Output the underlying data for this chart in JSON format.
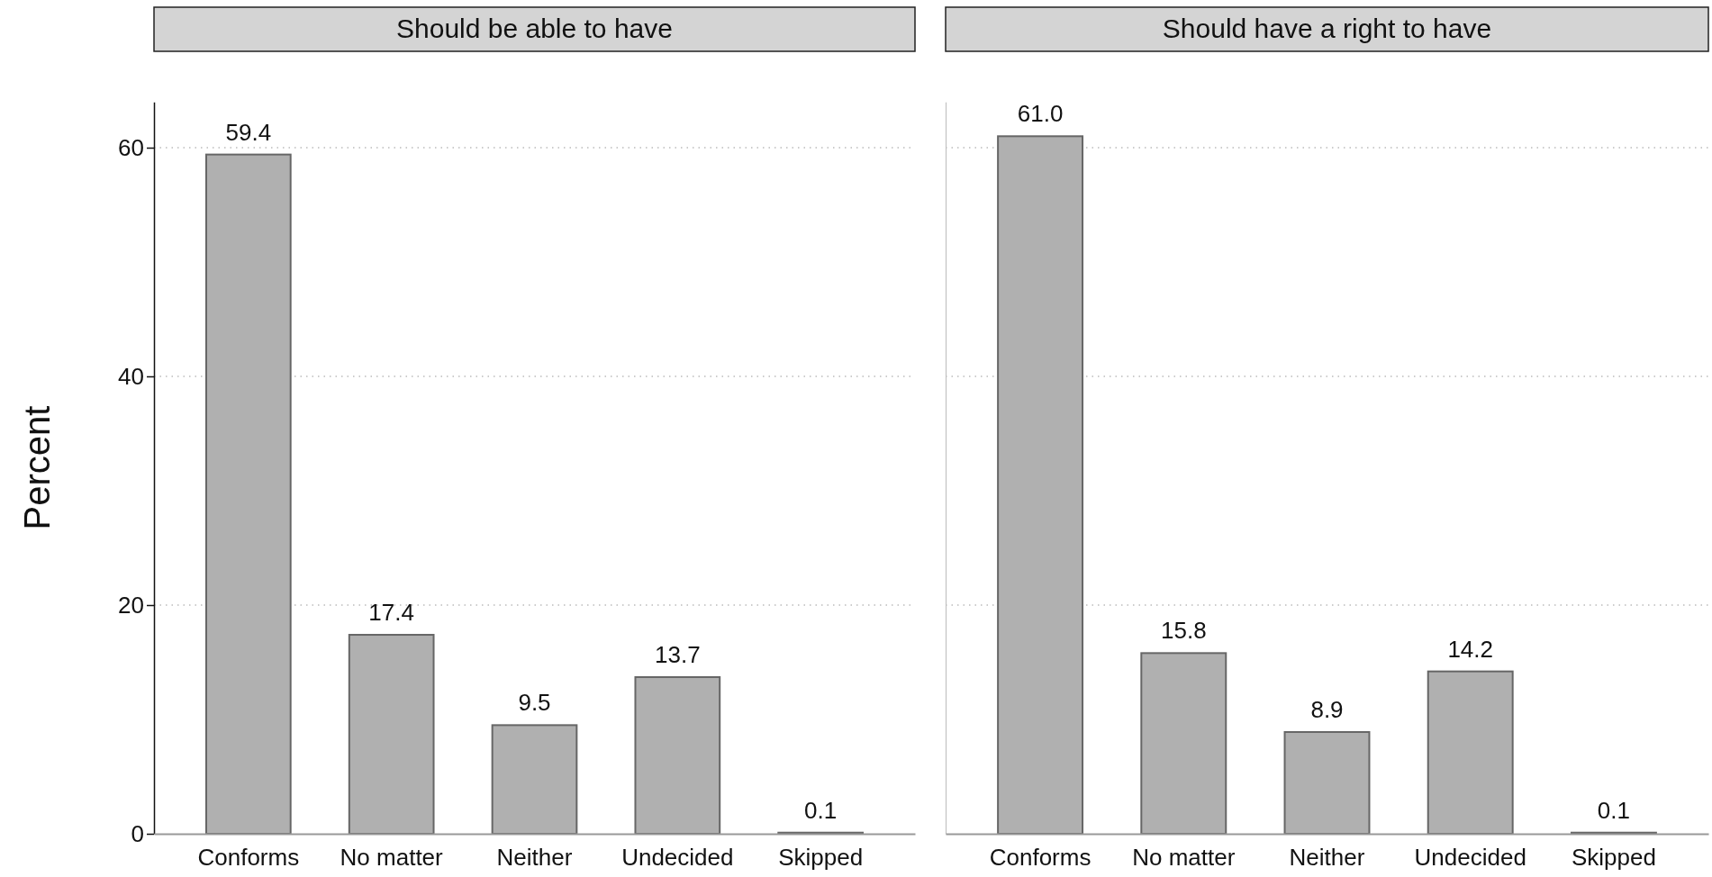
{
  "chart_data": [
    {
      "type": "bar",
      "title": "Should be able to have",
      "ylabel": "Percent",
      "categories": [
        "Conforms",
        "No matter",
        "Neither",
        "Undecided",
        "Skipped"
      ],
      "values": [
        59.4,
        17.4,
        9.5,
        13.7,
        0.1
      ],
      "value_labels": [
        "59.4",
        "17.4",
        "9.5",
        "13.7",
        "0.1"
      ],
      "color": "#b0b0b0",
      "ylim": [
        0,
        64
      ],
      "yticks": [
        0,
        20,
        40,
        60
      ],
      "grid": "y"
    },
    {
      "type": "bar",
      "title": "Should have a right to have",
      "categories": [
        "Conforms",
        "No matter",
        "Neither",
        "Undecided",
        "Skipped"
      ],
      "values": [
        61.0,
        15.8,
        8.9,
        14.2,
        0.1
      ],
      "value_labels": [
        "61.0",
        "15.8",
        "8.9",
        "14.2",
        "0.1"
      ],
      "color": "#b0b0b0",
      "ylim": [
        0,
        64
      ],
      "yticks": [
        0,
        20,
        40,
        60
      ],
      "grid": "y",
      "tick_labels": "x"
    }
  ]
}
